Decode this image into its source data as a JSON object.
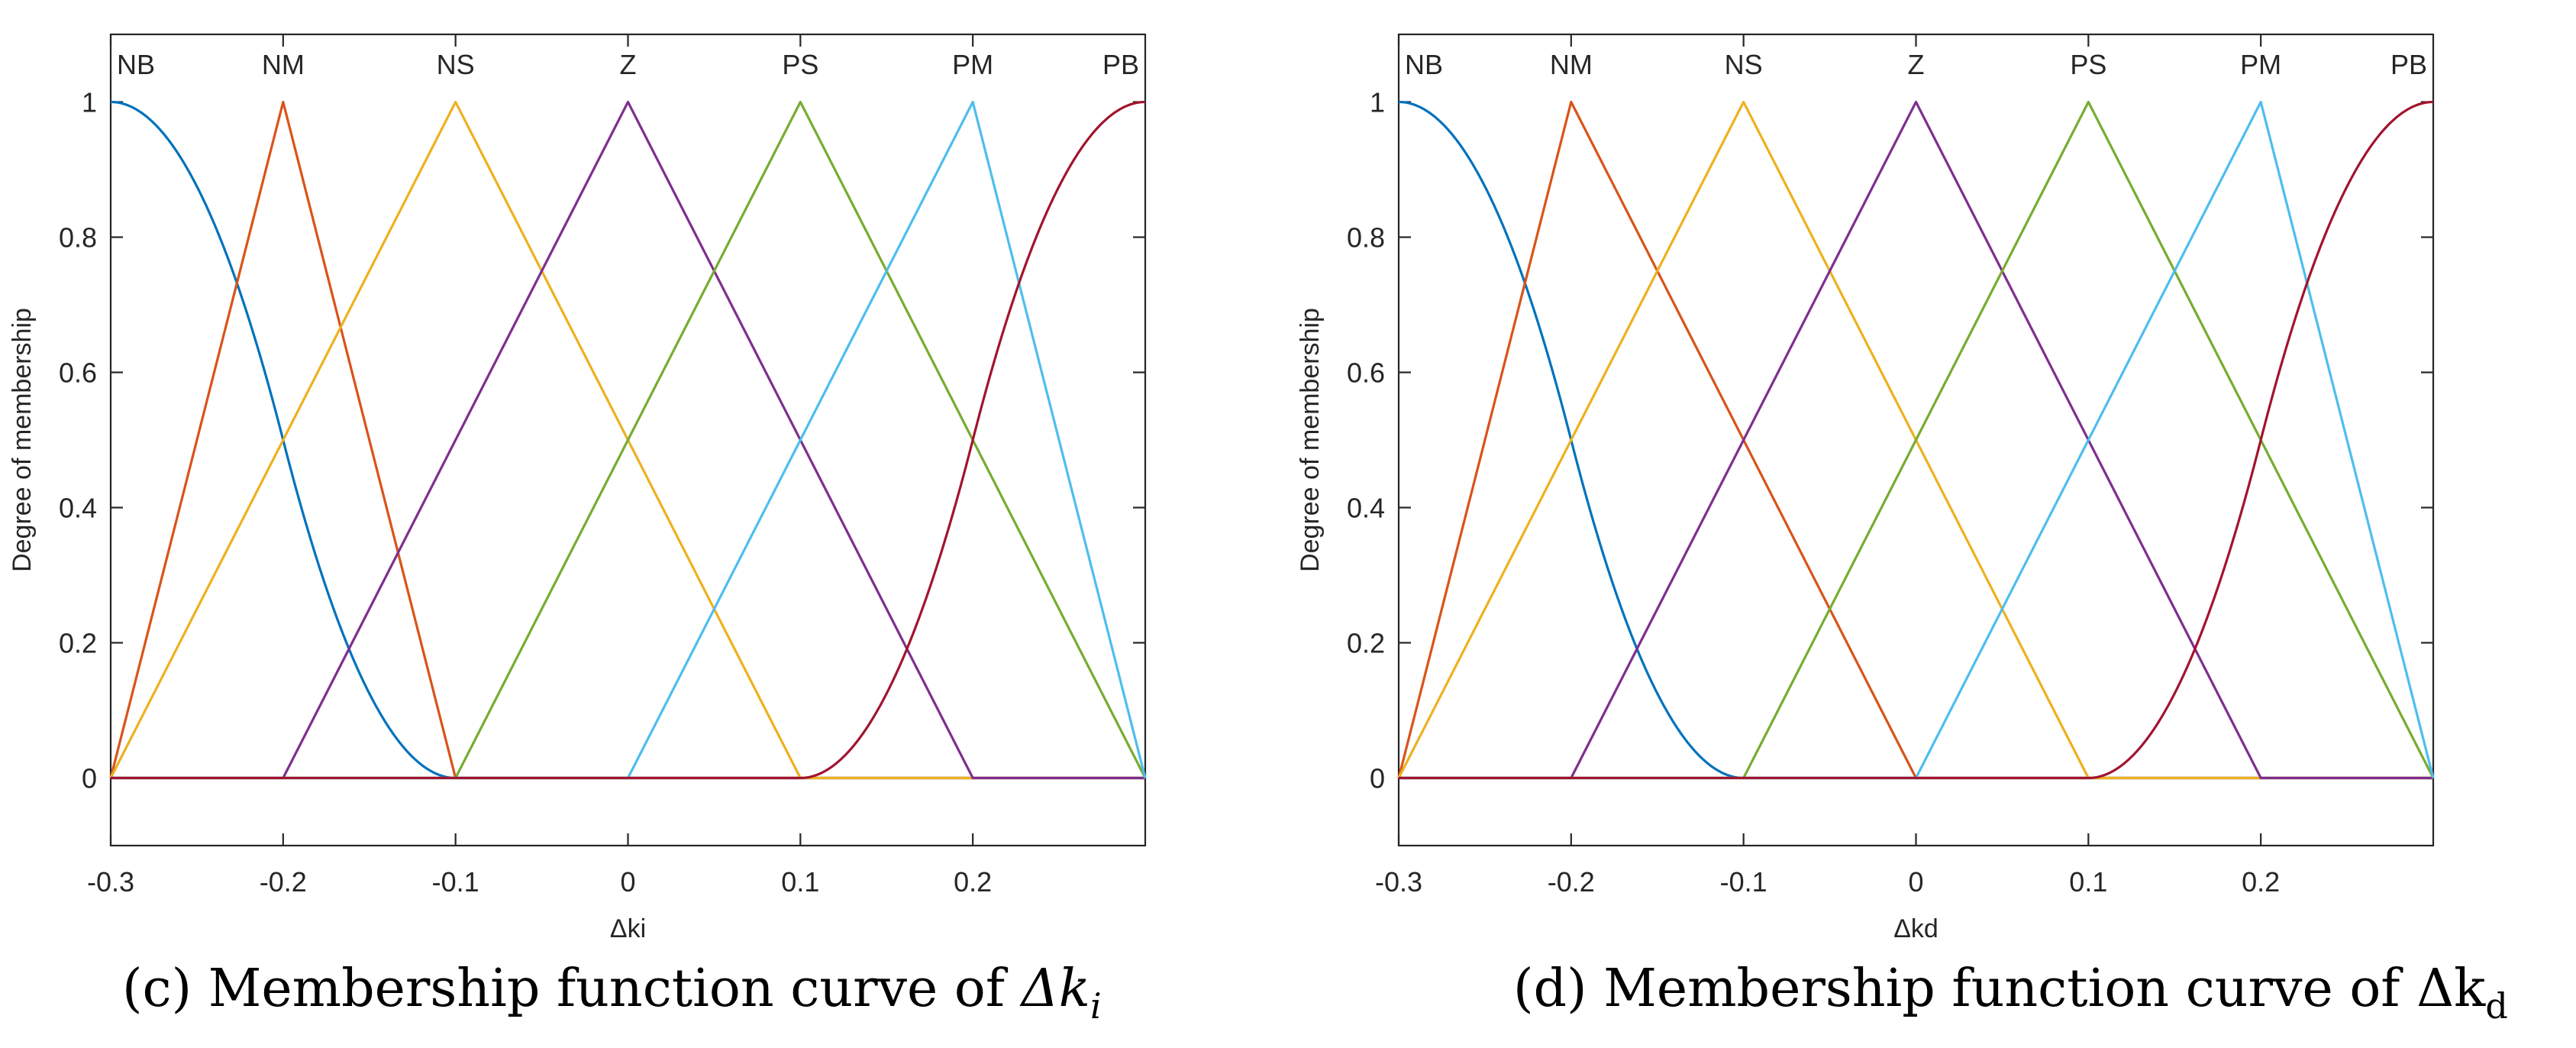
{
  "chart_data": [
    {
      "type": "line",
      "panel": "c",
      "xlabel": "Δki",
      "ylabel": "Degree of membership",
      "xlim": [
        -0.3,
        0.3
      ],
      "ylim": [
        -0.1,
        1.1
      ],
      "xticks": [
        -0.3,
        -0.2,
        -0.1,
        0,
        0.1,
        0.2
      ],
      "xtick_labels": [
        "-0.3",
        "-0.2",
        "-0.1",
        "0",
        "0.1",
        "0.2"
      ],
      "yticks": [
        0,
        0.2,
        0.4,
        0.6,
        0.8,
        1
      ],
      "ytick_labels": [
        "0",
        "0.2",
        "0.4",
        "0.6",
        "0.8",
        "1"
      ],
      "grid": false,
      "series": [
        {
          "name": "NB",
          "shape": "zmf",
          "params": [
            -0.3,
            -0.1
          ],
          "color": "#0072BD",
          "label_x": -0.3
        },
        {
          "name": "NM",
          "shape": "trimf",
          "params": [
            -0.3,
            -0.2,
            -0.1
          ],
          "color": "#D95319",
          "label_x": -0.2
        },
        {
          "name": "NS",
          "shape": "trimf",
          "params": [
            -0.3,
            -0.1,
            0.1
          ],
          "color": "#EDB120",
          "label_x": -0.1
        },
        {
          "name": "Z",
          "shape": "trimf",
          "params": [
            -0.2,
            0,
            0.2
          ],
          "color": "#7E2F8E",
          "label_x": 0
        },
        {
          "name": "PS",
          "shape": "trimf",
          "params": [
            -0.1,
            0.1,
            0.3
          ],
          "color": "#77AC30",
          "label_x": 0.1
        },
        {
          "name": "PM",
          "shape": "trimf",
          "params": [
            0,
            0.2,
            0.3
          ],
          "color": "#4DBEEE",
          "label_x": 0.2
        },
        {
          "name": "PB",
          "shape": "smf",
          "params": [
            0.1,
            0.3
          ],
          "color": "#A2142F",
          "label_x": 0.3
        }
      ]
    },
    {
      "type": "line",
      "panel": "d",
      "xlabel": "Δkd",
      "ylabel": "Degree of membership",
      "xlim": [
        -0.3,
        0.3
      ],
      "ylim": [
        -0.1,
        1.1
      ],
      "xticks": [
        -0.3,
        -0.2,
        -0.1,
        0,
        0.1,
        0.2
      ],
      "xtick_labels": [
        "-0.3",
        "-0.2",
        "-0.1",
        "0",
        "0.1",
        "0.2"
      ],
      "yticks": [
        0,
        0.2,
        0.4,
        0.6,
        0.8,
        1
      ],
      "ytick_labels": [
        "0",
        "0.2",
        "0.4",
        "0.6",
        "0.8",
        "1"
      ],
      "grid": false,
      "series": [
        {
          "name": "NB",
          "shape": "zmf",
          "params": [
            -0.3,
            -0.1
          ],
          "color": "#0072BD",
          "label_x": -0.3
        },
        {
          "name": "NM",
          "shape": "trimf",
          "params": [
            -0.3,
            -0.2,
            0
          ],
          "color": "#D95319",
          "label_x": -0.2
        },
        {
          "name": "NS",
          "shape": "trimf",
          "params": [
            -0.3,
            -0.1,
            0.1
          ],
          "color": "#EDB120",
          "label_x": -0.1
        },
        {
          "name": "Z",
          "shape": "trimf",
          "params": [
            -0.2,
            0,
            0.2
          ],
          "color": "#7E2F8E",
          "label_x": 0
        },
        {
          "name": "PS",
          "shape": "trimf",
          "params": [
            -0.1,
            0.1,
            0.3
          ],
          "color": "#77AC30",
          "label_x": 0.1
        },
        {
          "name": "PM",
          "shape": "trimf",
          "params": [
            0,
            0.2,
            0.3
          ],
          "color": "#4DBEEE",
          "label_x": 0.2
        },
        {
          "name": "PB",
          "shape": "smf",
          "params": [
            0.1,
            0.3
          ],
          "color": "#A2142F",
          "label_x": 0.3
        }
      ]
    }
  ],
  "captions": {
    "c": {
      "prefix": "(c) Membership function curve of ",
      "var": "Δk",
      "sub": "i"
    },
    "d": {
      "prefix": "(d) Membership function curve of ",
      "var": "Δk",
      "sub": "d"
    }
  }
}
